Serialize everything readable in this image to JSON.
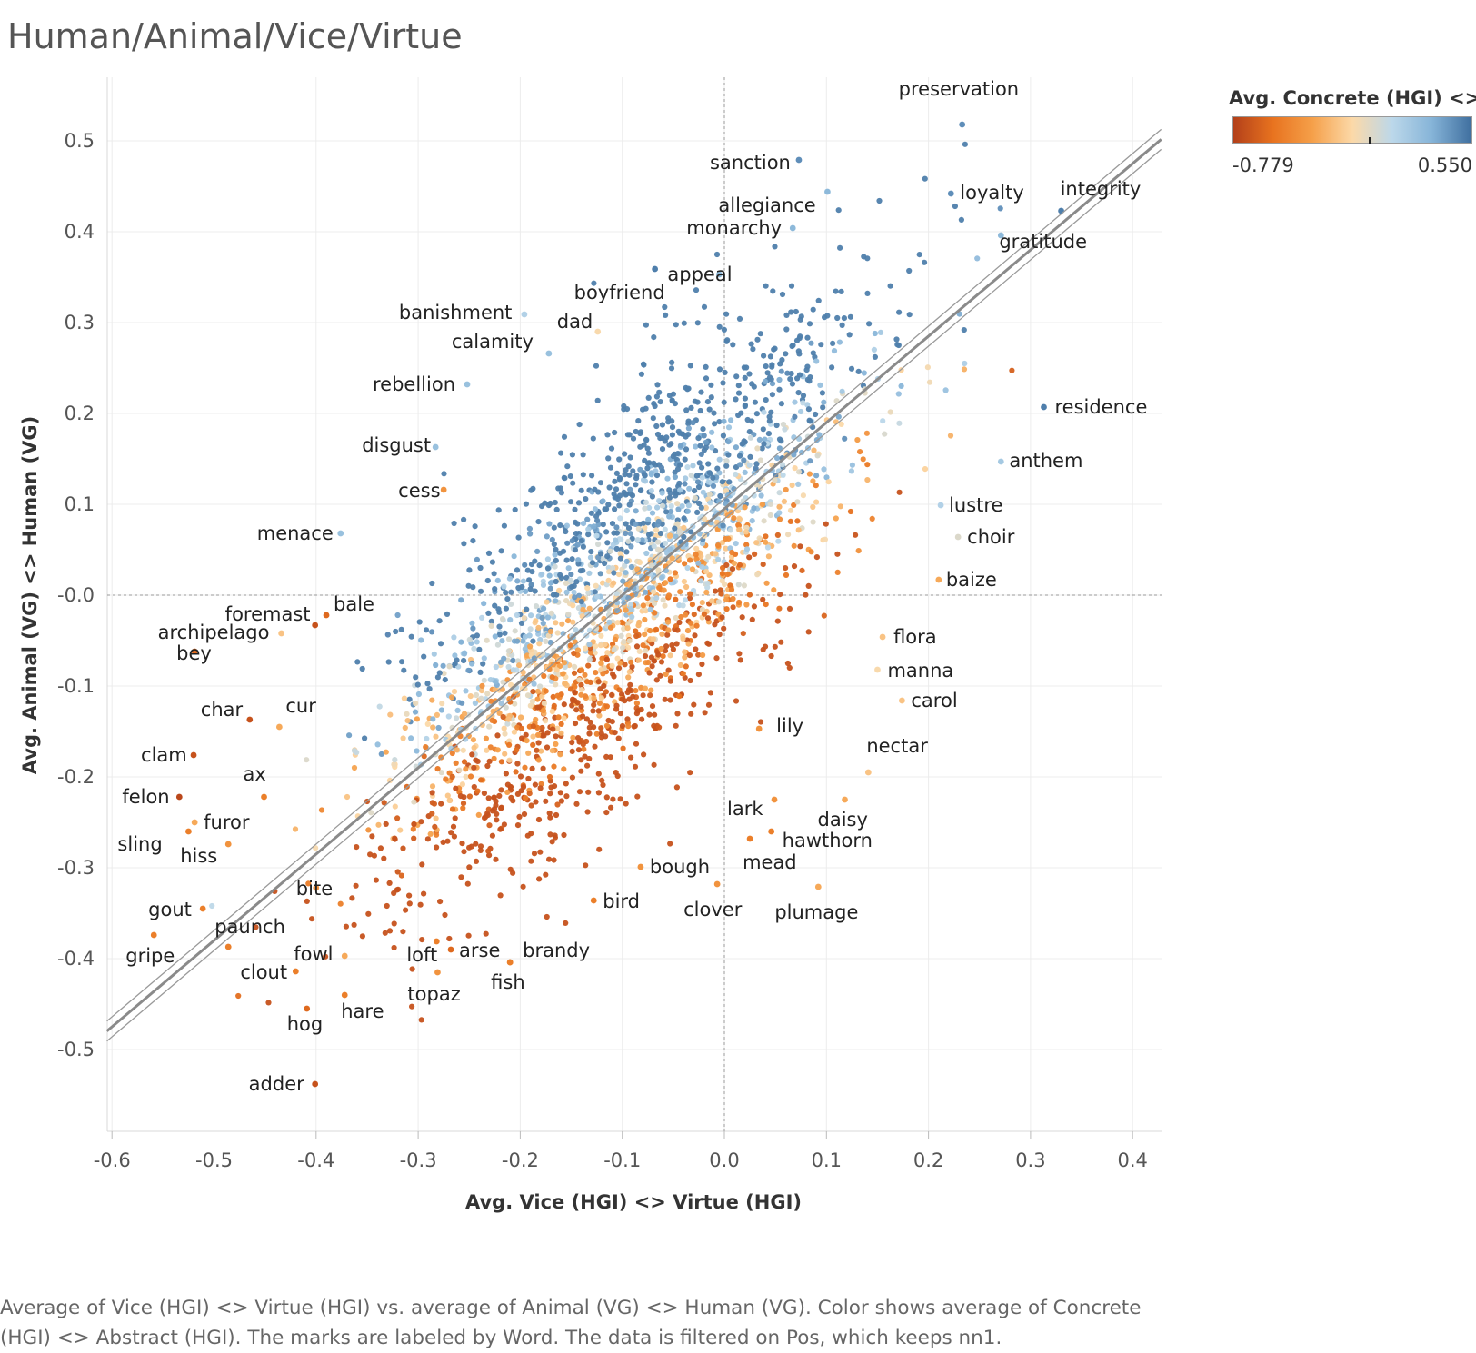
{
  "title": "Human/Animal/Vice/Virtue",
  "caption": "Average of Vice (HGI) <> Virtue (HGI) vs. average of Animal (VG) <> Human (VG).  Color shows average of Concrete (HGI) <> Abstract (HGI).  The marks are labeled by Word. The data is filtered on Pos, which keeps nn1.",
  "legend": {
    "title": "Avg. Concrete (HGI) <> ..",
    "min_label": "-0.779",
    "max_label": "0.550",
    "colors": [
      "#b3401a",
      "#e8731f",
      "#f5a04a",
      "#fcd9a8",
      "#bcd8ea",
      "#86b4d8",
      "#3f6f9f"
    ]
  },
  "chart_data": {
    "type": "scatter",
    "xlabel": "Avg. Vice (HGI) <> Virtue (HGI)",
    "ylabel": "Avg. Animal (VG) <> Human (VG)",
    "xlim": [
      -0.6,
      0.4
    ],
    "ylim": [
      -0.5,
      0.5
    ],
    "x_ticks": [
      -0.6,
      -0.5,
      -0.4,
      -0.3,
      -0.2,
      -0.1,
      0.0,
      0.1,
      0.2,
      0.3,
      0.4
    ],
    "x_tick_labels": [
      "-0.6",
      "-0.5",
      "-0.4",
      "-0.3",
      "-0.2",
      "-0.1",
      "0.0",
      "0.1",
      "0.2",
      "0.3",
      "0.4"
    ],
    "y_ticks": [
      0.5,
      0.4,
      0.3,
      0.2,
      0.1,
      0.0,
      -0.1,
      -0.2,
      -0.3,
      -0.4,
      -0.5
    ],
    "y_tick_labels": [
      "0.5",
      "0.4",
      "0.3",
      "0.2",
      "0.1",
      "-0.0",
      "-0.1",
      "-0.2",
      "-0.3",
      "-0.4",
      "-0.5"
    ],
    "grid": true,
    "reference_lines": {
      "x": 0.0,
      "y": 0.0
    },
    "trend_line": {
      "slope": 0.95,
      "intercept": 0.095
    },
    "legend_position": "top-right",
    "color_range": [
      -0.779,
      0.55
    ],
    "labeled_points": [
      {
        "word": "preservation",
        "x": 0.233,
        "y": 0.518,
        "c": 0.45
      },
      {
        "word": "sanction",
        "x": 0.073,
        "y": 0.479,
        "c": 0.45
      },
      {
        "word": "allegiance",
        "x": 0.101,
        "y": 0.444,
        "c": 0.3
      },
      {
        "word": "loyalty",
        "x": 0.222,
        "y": 0.442,
        "c": 0.45
      },
      {
        "word": "integrity",
        "x": 0.33,
        "y": 0.423,
        "c": 0.5
      },
      {
        "word": "monarchy",
        "x": 0.067,
        "y": 0.404,
        "c": 0.3
      },
      {
        "word": "gratitude",
        "x": 0.271,
        "y": 0.396,
        "c": 0.3
      },
      {
        "word": "appeal",
        "x": -0.005,
        "y": 0.353,
        "c": 0.3
      },
      {
        "word": "boyfriend",
        "x": -0.068,
        "y": 0.359,
        "c": 0.5
      },
      {
        "word": "banishment",
        "x": -0.196,
        "y": 0.309,
        "c": 0.15
      },
      {
        "word": "dad",
        "x": -0.124,
        "y": 0.29,
        "c": -0.1
      },
      {
        "word": "calamity",
        "x": -0.172,
        "y": 0.266,
        "c": 0.25
      },
      {
        "word": "rebellion",
        "x": -0.252,
        "y": 0.232,
        "c": 0.25
      },
      {
        "word": "residence",
        "x": 0.313,
        "y": 0.207,
        "c": 0.5
      },
      {
        "word": "disgust",
        "x": -0.283,
        "y": 0.163,
        "c": 0.25
      },
      {
        "word": "anthem",
        "x": 0.271,
        "y": 0.147,
        "c": 0.2
      },
      {
        "word": "cess",
        "x": -0.275,
        "y": 0.116,
        "c": -0.4
      },
      {
        "word": "lustre",
        "x": 0.212,
        "y": 0.099,
        "c": 0.15
      },
      {
        "word": "menace",
        "x": -0.376,
        "y": 0.068,
        "c": 0.25
      },
      {
        "word": "choir",
        "x": 0.229,
        "y": 0.064,
        "c": 0.0
      },
      {
        "word": "baize",
        "x": 0.21,
        "y": 0.017,
        "c": -0.3
      },
      {
        "word": "bale",
        "x": -0.39,
        "y": -0.022,
        "c": -0.6
      },
      {
        "word": "foremast",
        "x": -0.401,
        "y": -0.033,
        "c": -0.7
      },
      {
        "word": "flora",
        "x": 0.155,
        "y": -0.046,
        "c": -0.2
      },
      {
        "word": "archipelago",
        "x": -0.434,
        "y": -0.042,
        "c": -0.2
      },
      {
        "word": "bey",
        "x": -0.519,
        "y": -0.062,
        "c": -0.6
      },
      {
        "word": "manna",
        "x": 0.15,
        "y": -0.082,
        "c": -0.1
      },
      {
        "word": "carol",
        "x": 0.174,
        "y": -0.116,
        "c": -0.2
      },
      {
        "word": "char",
        "x": -0.465,
        "y": -0.137,
        "c": -0.7
      },
      {
        "word": "cur",
        "x": -0.436,
        "y": -0.145,
        "c": -0.3
      },
      {
        "word": "lily",
        "x": 0.034,
        "y": -0.147,
        "c": -0.4
      },
      {
        "word": "nectar",
        "x": 0.141,
        "y": -0.195,
        "c": -0.2
      },
      {
        "word": "clam",
        "x": -0.52,
        "y": -0.176,
        "c": -0.7
      },
      {
        "word": "ax",
        "x": -0.451,
        "y": -0.222,
        "c": -0.5
      },
      {
        "word": "felon",
        "x": -0.534,
        "y": -0.222,
        "c": -0.75
      },
      {
        "word": "daisy",
        "x": 0.118,
        "y": -0.225,
        "c": -0.3
      },
      {
        "word": "lark",
        "x": 0.049,
        "y": -0.225,
        "c": -0.4
      },
      {
        "word": "furor",
        "x": -0.519,
        "y": -0.25,
        "c": -0.3
      },
      {
        "word": "hawthorn",
        "x": 0.046,
        "y": -0.26,
        "c": -0.5
      },
      {
        "word": "sling",
        "x": -0.525,
        "y": -0.26,
        "c": -0.5
      },
      {
        "word": "hiss",
        "x": -0.486,
        "y": -0.274,
        "c": -0.4
      },
      {
        "word": "mead",
        "x": 0.025,
        "y": -0.268,
        "c": -0.5
      },
      {
        "word": "bough",
        "x": -0.082,
        "y": -0.299,
        "c": -0.4
      },
      {
        "word": "bird",
        "x": -0.128,
        "y": -0.336,
        "c": -0.5
      },
      {
        "word": "clover",
        "x": -0.007,
        "y": -0.318,
        "c": -0.4
      },
      {
        "word": "plumage",
        "x": 0.092,
        "y": -0.321,
        "c": -0.3
      },
      {
        "word": "gout",
        "x": -0.511,
        "y": -0.345,
        "c": -0.5
      },
      {
        "word": "bite",
        "x": -0.4,
        "y": -0.322,
        "c": -0.4
      },
      {
        "word": "paunch",
        "x": -0.486,
        "y": -0.387,
        "c": -0.5
      },
      {
        "word": "gripe",
        "x": -0.559,
        "y": -0.374,
        "c": -0.5
      },
      {
        "word": "fowl",
        "x": -0.372,
        "y": -0.397,
        "c": -0.3
      },
      {
        "word": "loft",
        "x": -0.282,
        "y": -0.381,
        "c": -0.5
      },
      {
        "word": "arse",
        "x": -0.268,
        "y": -0.39,
        "c": -0.6
      },
      {
        "word": "brandy",
        "x": -0.21,
        "y": -0.404,
        "c": -0.5
      },
      {
        "word": "clout",
        "x": -0.42,
        "y": -0.414,
        "c": -0.5
      },
      {
        "word": "fish",
        "x": -0.21,
        "y": -0.404,
        "c": -0.5
      },
      {
        "word": "topaz",
        "x": -0.281,
        "y": -0.415,
        "c": -0.4
      },
      {
        "word": "hare",
        "x": -0.372,
        "y": -0.44,
        "c": -0.5
      },
      {
        "word": "hog",
        "x": -0.409,
        "y": -0.455,
        "c": -0.6
      },
      {
        "word": "adder",
        "x": -0.401,
        "y": -0.538,
        "c": -0.7
      }
    ]
  }
}
